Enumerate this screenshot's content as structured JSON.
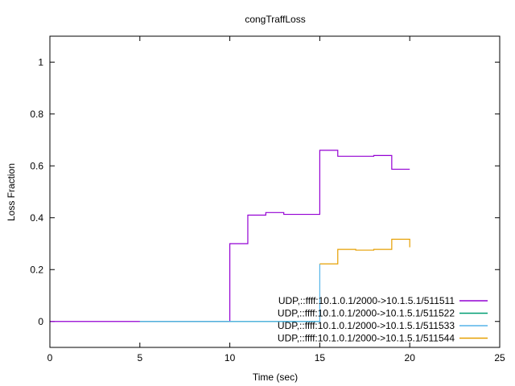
{
  "chart_data": {
    "type": "line",
    "step": true,
    "title": "congTraffLoss",
    "xlabel": "Time (sec)",
    "ylabel": "Loss Fraction",
    "xlim": [
      0,
      25
    ],
    "ylim": [
      -0.1,
      1.1
    ],
    "xticks": [
      0,
      5,
      10,
      15,
      20,
      25
    ],
    "yticks": [
      0,
      0.2,
      0.4,
      0.6,
      0.8,
      1
    ],
    "xtick_labels": [
      "0",
      "5",
      "10",
      "15",
      "20",
      "25"
    ],
    "ytick_labels": [
      "0",
      "0.2",
      "0.4",
      "0.6",
      "0.8",
      "1"
    ],
    "grid": false,
    "legend_position": "bottom-right",
    "series": [
      {
        "name": "UDP,::ffff:10.1.0.1/2000->10.1.5.1/511511",
        "color": "#9400d3",
        "points": [
          [
            0,
            0
          ],
          [
            1,
            0
          ],
          [
            2,
            0
          ],
          [
            3,
            0
          ],
          [
            4,
            0
          ],
          [
            5,
            0
          ],
          [
            6,
            0
          ],
          [
            7,
            0
          ],
          [
            8,
            0
          ],
          [
            9,
            0
          ],
          [
            10,
            0.3
          ],
          [
            11,
            0.41
          ],
          [
            12,
            0.42
          ],
          [
            13,
            0.413
          ],
          [
            14,
            0.413
          ],
          [
            15,
            0.66
          ],
          [
            16,
            0.637
          ],
          [
            17,
            0.637
          ],
          [
            18,
            0.64
          ],
          [
            19,
            0.587
          ],
          [
            20,
            0.587
          ]
        ]
      },
      {
        "name": "UDP,::ffff:10.1.0.1/2000->10.1.5.1/511522",
        "color": "#009e73",
        "points": [
          [
            5,
            0
          ],
          [
            6,
            0
          ],
          [
            7,
            0
          ],
          [
            8,
            0
          ],
          [
            9,
            0
          ],
          [
            10,
            0
          ],
          [
            11,
            0
          ],
          [
            12,
            0
          ],
          [
            13,
            0
          ],
          [
            14,
            0
          ],
          [
            15,
            0
          ]
        ]
      },
      {
        "name": "UDP,::ffff:10.1.0.1/2000->10.1.5.1/511533",
        "color": "#56b4e9",
        "points": [
          [
            5,
            0
          ],
          [
            6,
            0
          ],
          [
            7,
            0
          ],
          [
            8,
            0
          ],
          [
            9,
            0
          ],
          [
            10,
            0
          ],
          [
            11,
            0
          ],
          [
            12,
            0
          ],
          [
            13,
            0
          ],
          [
            14,
            0
          ],
          [
            15,
            0.222
          ]
        ]
      },
      {
        "name": "UDP,::ffff:10.1.0.1/2000->10.1.5.1/511544",
        "color": "#e69f00",
        "points": [
          [
            15,
            0.222
          ],
          [
            16,
            0.278
          ],
          [
            17,
            0.275
          ],
          [
            18,
            0.278
          ],
          [
            19,
            0.317
          ],
          [
            20,
            0.286
          ]
        ]
      }
    ]
  }
}
